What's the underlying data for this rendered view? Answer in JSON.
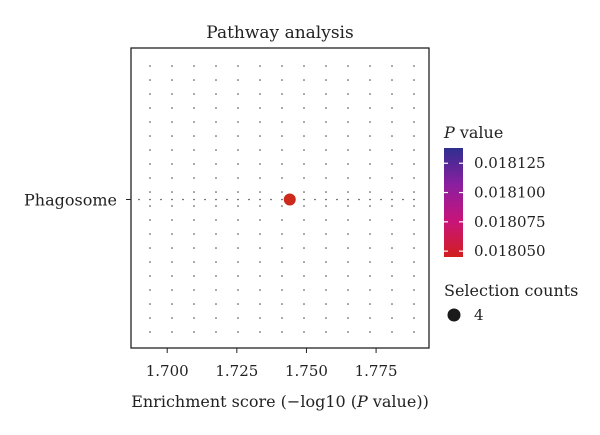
{
  "chart_data": {
    "type": "scatter",
    "title": "Pathway analysis",
    "xlabel": "Enrichment score (−log10 (P value))",
    "xlabel_parts": [
      "Enrichment score (−log10 (",
      "P",
      " value))"
    ],
    "ylabel": "",
    "categories": [
      "Phagosome"
    ],
    "xlim": [
      1.687,
      1.794
    ],
    "xticks": [
      1.7,
      1.725,
      1.75,
      1.775
    ],
    "xtick_labels": [
      "1.700",
      "1.725",
      "1.750",
      "1.775"
    ],
    "grid": true,
    "points": [
      {
        "category": "Phagosome",
        "x": 1.744,
        "p_value": 0.01805,
        "selection_counts": 4,
        "color": "#cc2a1a"
      }
    ],
    "color_legend": {
      "title_italic": "P",
      "title_rest": " value",
      "ticks": [
        0.018125,
        0.0181,
        0.018075,
        0.01805
      ],
      "tick_labels": [
        "0.018125",
        "0.018100",
        "0.018075",
        "0.018050"
      ],
      "range": [
        0.018045,
        0.018138
      ],
      "colors_top_to_bottom": [
        "#2f2f8f",
        "#8a1fa0",
        "#c8147a",
        "#d11f1f"
      ]
    },
    "size_legend": {
      "title": "Selection counts",
      "entries": [
        {
          "value": "4",
          "color": "#1a1a1a"
        }
      ]
    }
  }
}
